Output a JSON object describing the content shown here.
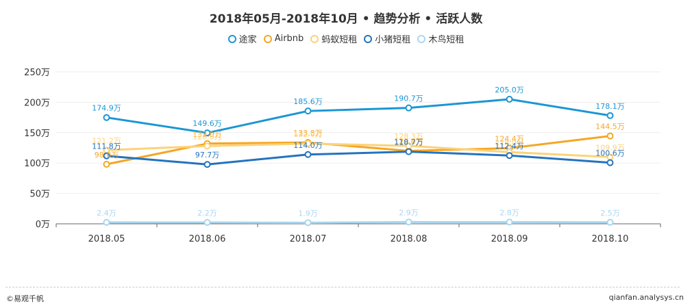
{
  "chart_data": {
    "type": "line",
    "title": "2018年05月-2018年10月 • 趋势分析 • 活跃人数",
    "categories": [
      "2018.05",
      "2018.06",
      "2018.07",
      "2018.08",
      "2018.09",
      "2018.10"
    ],
    "ylim": [
      0,
      250
    ],
    "yticks": [
      0,
      50,
      100,
      150,
      200,
      250
    ],
    "ytick_labels": [
      "0万",
      "50万",
      "100万",
      "150万",
      "200万",
      "250万"
    ],
    "unit": "万",
    "legend_position": "top-center",
    "grid": true,
    "series": [
      {
        "name": "途家",
        "color": "#1a96d4",
        "values": [
          174.9,
          149.6,
          185.6,
          190.7,
          205.0,
          178.1
        ],
        "labels": [
          "174.9万",
          "149.6万",
          "185.6万",
          "190.7万",
          "205.0万",
          "178.1万"
        ]
      },
      {
        "name": "Airbnb",
        "color": "#f5a623",
        "values": [
          98.0,
          132.0,
          133.8,
          120.0,
          124.4,
          144.5
        ],
        "labels": [
          "98.0万",
          "132.0万",
          "133.8万",
          "120.0万",
          "124.4万",
          "144.5万"
        ]
      },
      {
        "name": "蚂蚁短租",
        "color": "#fcd27a",
        "values": [
          121.2,
          128.0,
          132.0,
          128.3,
          118.0,
          109.9
        ],
        "labels": [
          "121.2万",
          "128.0万",
          "132.0万",
          "128.3万",
          "118.0万",
          "109.9万"
        ]
      },
      {
        "name": "小猪短租",
        "color": "#2473bd",
        "values": [
          111.8,
          97.7,
          114.0,
          118.7,
          112.4,
          100.6
        ],
        "labels": [
          "111.8万",
          "97.7万",
          "114.0万",
          "118.7万",
          "112.4万",
          "100.6万"
        ]
      },
      {
        "name": "木鸟短租",
        "color": "#a9d6f0",
        "values": [
          2.4,
          2.2,
          1.9,
          2.9,
          2.8,
          2.5
        ],
        "labels": [
          "2.4万",
          "2.2万",
          "1.9万",
          "2.9万",
          "2.8万",
          "2.5万"
        ]
      }
    ]
  },
  "footer": {
    "brand": "©易观千帆",
    "site": "qianfan.analysys.cn"
  }
}
